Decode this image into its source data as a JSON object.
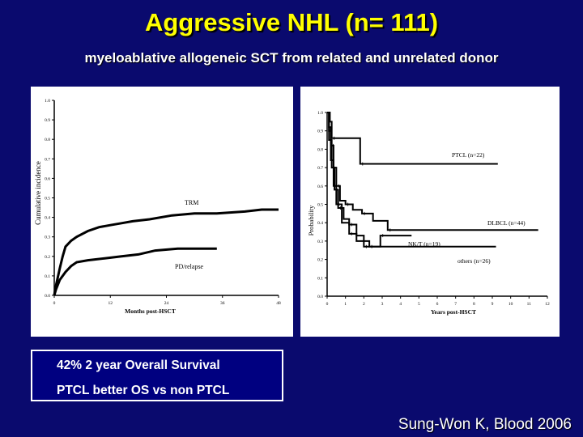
{
  "title": "Aggressive NHL (n= 111)",
  "subtitle": "myeloablative allogeneic SCT from related and unrelated donor",
  "callout": {
    "line1": "42%  2  year Overall Survival",
    "line2": "PTCL better OS vs non PTCL"
  },
  "citation": "Sung-Won K, Blood 2006",
  "chart_data": [
    {
      "type": "line",
      "xlabel": "Months post-HSCT",
      "ylabel": "Cumulative incidence",
      "xlim": [
        0,
        40
      ],
      "ylim": [
        0,
        1.0
      ],
      "x_ticks": [
        "0",
        "12",
        "24",
        "36",
        "48"
      ],
      "y_ticks": [
        "0.0",
        "0.1",
        "0.2",
        "0.3",
        "0.4",
        "0.5",
        "0.6",
        "0.7",
        "0.8",
        "0.9",
        "1.0"
      ],
      "grid": false,
      "series": [
        {
          "name": "TRM",
          "points": [
            [
              0,
              0
            ],
            [
              0.3,
              0.05
            ],
            [
              1,
              0.14
            ],
            [
              1.5,
              0.2
            ],
            [
              2,
              0.25
            ],
            [
              3,
              0.28
            ],
            [
              4,
              0.3
            ],
            [
              6,
              0.33
            ],
            [
              8,
              0.35
            ],
            [
              10,
              0.36
            ],
            [
              12,
              0.37
            ],
            [
              14,
              0.38
            ],
            [
              17,
              0.39
            ],
            [
              21,
              0.41
            ],
            [
              25,
              0.42
            ],
            [
              29,
              0.42
            ],
            [
              34,
              0.43
            ],
            [
              37,
              0.44
            ],
            [
              40,
              0.44
            ]
          ]
        },
        {
          "name": "PD/relapse",
          "points": [
            [
              0,
              0
            ],
            [
              0.3,
              0.03
            ],
            [
              1,
              0.08
            ],
            [
              2,
              0.12
            ],
            [
              3,
              0.15
            ],
            [
              4,
              0.17
            ],
            [
              6,
              0.18
            ],
            [
              9,
              0.19
            ],
            [
              12,
              0.2
            ],
            [
              15,
              0.21
            ],
            [
              18,
              0.23
            ],
            [
              22,
              0.24
            ],
            [
              29,
              0.24
            ]
          ]
        }
      ]
    },
    {
      "type": "line",
      "xlabel": "Years post-HSCT",
      "ylabel": "Probability",
      "xlim": [
        0,
        12
      ],
      "ylim": [
        0,
        1.0
      ],
      "x_ticks": [
        "0",
        "1",
        "2",
        "3",
        "4",
        "5",
        "6",
        "7",
        "8",
        "9",
        "10",
        "11",
        "12"
      ],
      "y_ticks": [
        "0.0",
        "0.1",
        "0.2",
        "0.3",
        "0.4",
        "0.5",
        "0.6",
        "0.7",
        "0.8",
        "0.9",
        "1.0"
      ],
      "grid": false,
      "series": [
        {
          "name": "PTCL (n=22)",
          "points": [
            [
              0,
              1.0
            ],
            [
              0.15,
              0.95
            ],
            [
              0.25,
              0.86
            ],
            [
              1.5,
              0.86
            ],
            [
              1.8,
              0.72
            ],
            [
              9.3,
              0.72
            ]
          ]
        },
        {
          "name": "DLBCL (n=44)",
          "points": [
            [
              0,
              1.0
            ],
            [
              0.1,
              0.92
            ],
            [
              0.2,
              0.82
            ],
            [
              0.35,
              0.7
            ],
            [
              0.5,
              0.6
            ],
            [
              0.7,
              0.52
            ],
            [
              1.0,
              0.5
            ],
            [
              1.4,
              0.47
            ],
            [
              1.9,
              0.45
            ],
            [
              2.5,
              0.41
            ],
            [
              3.3,
              0.36
            ],
            [
              11.5,
              0.36
            ]
          ]
        },
        {
          "name": "NK/T (n=19)",
          "points": [
            [
              0,
              1.0
            ],
            [
              0.1,
              0.85
            ],
            [
              0.25,
              0.7
            ],
            [
              0.4,
              0.58
            ],
            [
              0.6,
              0.48
            ],
            [
              0.9,
              0.42
            ],
            [
              1.2,
              0.39
            ],
            [
              1.6,
              0.33
            ],
            [
              2.0,
              0.27
            ],
            [
              2.5,
              0.27
            ],
            [
              2.9,
              0.33
            ],
            [
              4.6,
              0.33
            ]
          ]
        },
        {
          "name": "others (n=26)",
          "points": [
            [
              0,
              1.0
            ],
            [
              0.1,
              0.9
            ],
            [
              0.2,
              0.74
            ],
            [
              0.35,
              0.6
            ],
            [
              0.5,
              0.5
            ],
            [
              0.8,
              0.4
            ],
            [
              1.2,
              0.34
            ],
            [
              1.6,
              0.3
            ],
            [
              2.3,
              0.27
            ],
            [
              9.2,
              0.27
            ]
          ]
        }
      ]
    }
  ]
}
